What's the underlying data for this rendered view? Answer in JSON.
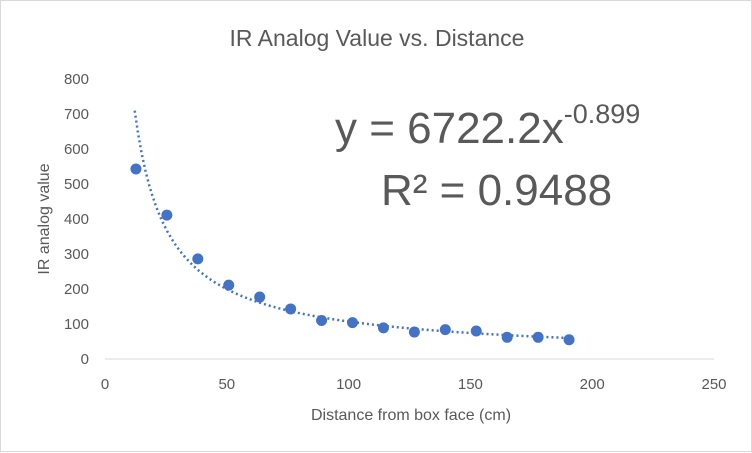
{
  "chart_data": {
    "type": "scatter",
    "title": "IR Analog Value vs. Distance",
    "xlabel": "Distance from box face (cm)",
    "ylabel": "IR analog value",
    "xlim": [
      0,
      250
    ],
    "ylim": [
      0,
      800
    ],
    "x_ticks": [
      "0",
      "50",
      "100",
      "150",
      "200",
      "250"
    ],
    "y_ticks": [
      "0",
      "100",
      "200",
      "300",
      "400",
      "500",
      "600",
      "700",
      "800"
    ],
    "grid": false,
    "legend": "none",
    "colors": {
      "marker": "#4472c4",
      "trendline": "#4472c4",
      "text": "#595959"
    },
    "series": [
      {
        "x": [
          12.7,
          25.4,
          38.1,
          50.8,
          63.5,
          76.2,
          88.9,
          101.6,
          114.3,
          127.0,
          139.7,
          152.4,
          165.1,
          177.8,
          190.5
        ],
        "y": [
          543,
          411,
          286,
          211,
          177,
          143,
          110,
          104,
          89,
          77,
          84,
          80,
          62,
          62,
          55
        ]
      }
    ],
    "trendline": {
      "type": "power",
      "a": 6722.2,
      "b": -0.899,
      "x_range": [
        12.2,
        190.5
      ],
      "equation_base": "y = 6722.2x",
      "equation_exponent": "-0.899",
      "r_squared_label": "R² = 0.9488"
    }
  }
}
